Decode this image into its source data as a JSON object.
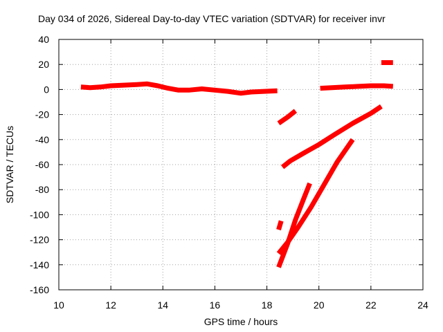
{
  "chart_data": {
    "type": "line",
    "title": "Day 034 of 2026, Sidereal Day-to-day VTEC variation (SDTVAR) for receiver invr",
    "xlabel": "GPS time / hours",
    "ylabel": "SDTVAR / TECUs",
    "xlim": [
      10,
      24
    ],
    "ylim": [
      -160,
      40
    ],
    "xticks": [
      10,
      12,
      14,
      16,
      18,
      20,
      22,
      24
    ],
    "yticks": [
      -160,
      -140,
      -120,
      -100,
      -80,
      -60,
      -40,
      -20,
      0,
      20,
      40
    ],
    "grid": true,
    "legend": "none",
    "color": "#ff0000",
    "series": [
      {
        "values": [
          [
            10.85,
            2
          ],
          [
            11.2,
            1.5
          ],
          [
            11.6,
            2
          ],
          [
            12.0,
            3
          ],
          [
            12.5,
            3.5
          ],
          [
            13.0,
            4
          ],
          [
            13.4,
            4.5
          ],
          [
            13.8,
            3
          ],
          [
            14.2,
            1
          ],
          [
            14.6,
            -0.5
          ],
          [
            15.0,
            -0.5
          ],
          [
            15.5,
            0.5
          ],
          [
            16.0,
            -0.5
          ],
          [
            16.5,
            -1.5
          ],
          [
            17.0,
            -3
          ],
          [
            17.4,
            -2
          ],
          [
            17.9,
            -1.5
          ],
          [
            18.4,
            -1
          ]
        ]
      },
      {
        "values": [
          [
            20.05,
            1
          ],
          [
            20.5,
            1.5
          ],
          [
            21.0,
            2
          ],
          [
            21.5,
            2.5
          ],
          [
            22.0,
            3
          ],
          [
            22.5,
            3
          ],
          [
            22.85,
            2.5
          ]
        ]
      },
      {
        "values": [
          [
            22.4,
            21.5
          ],
          [
            22.85,
            21.5
          ]
        ]
      },
      {
        "values": [
          [
            18.45,
            -27
          ],
          [
            18.8,
            -22
          ],
          [
            19.1,
            -17
          ]
        ]
      },
      {
        "values": [
          [
            18.6,
            -62
          ],
          [
            18.9,
            -57
          ],
          [
            19.4,
            -51
          ],
          [
            20.0,
            -44
          ],
          [
            20.6,
            -36
          ],
          [
            21.3,
            -27
          ],
          [
            22.0,
            -19
          ],
          [
            22.4,
            -13.5
          ]
        ]
      },
      {
        "values": [
          [
            18.45,
            -112
          ],
          [
            18.55,
            -105
          ]
        ]
      },
      {
        "values": [
          [
            18.45,
            -131
          ],
          [
            18.8,
            -122
          ],
          [
            19.2,
            -110
          ],
          [
            19.7,
            -94
          ],
          [
            20.2,
            -76
          ],
          [
            20.7,
            -58
          ],
          [
            21.3,
            -40
          ]
        ]
      },
      {
        "values": [
          [
            18.45,
            -142
          ],
          [
            18.8,
            -123
          ],
          [
            19.1,
            -104
          ],
          [
            19.4,
            -88
          ],
          [
            19.65,
            -75
          ]
        ]
      }
    ]
  }
}
